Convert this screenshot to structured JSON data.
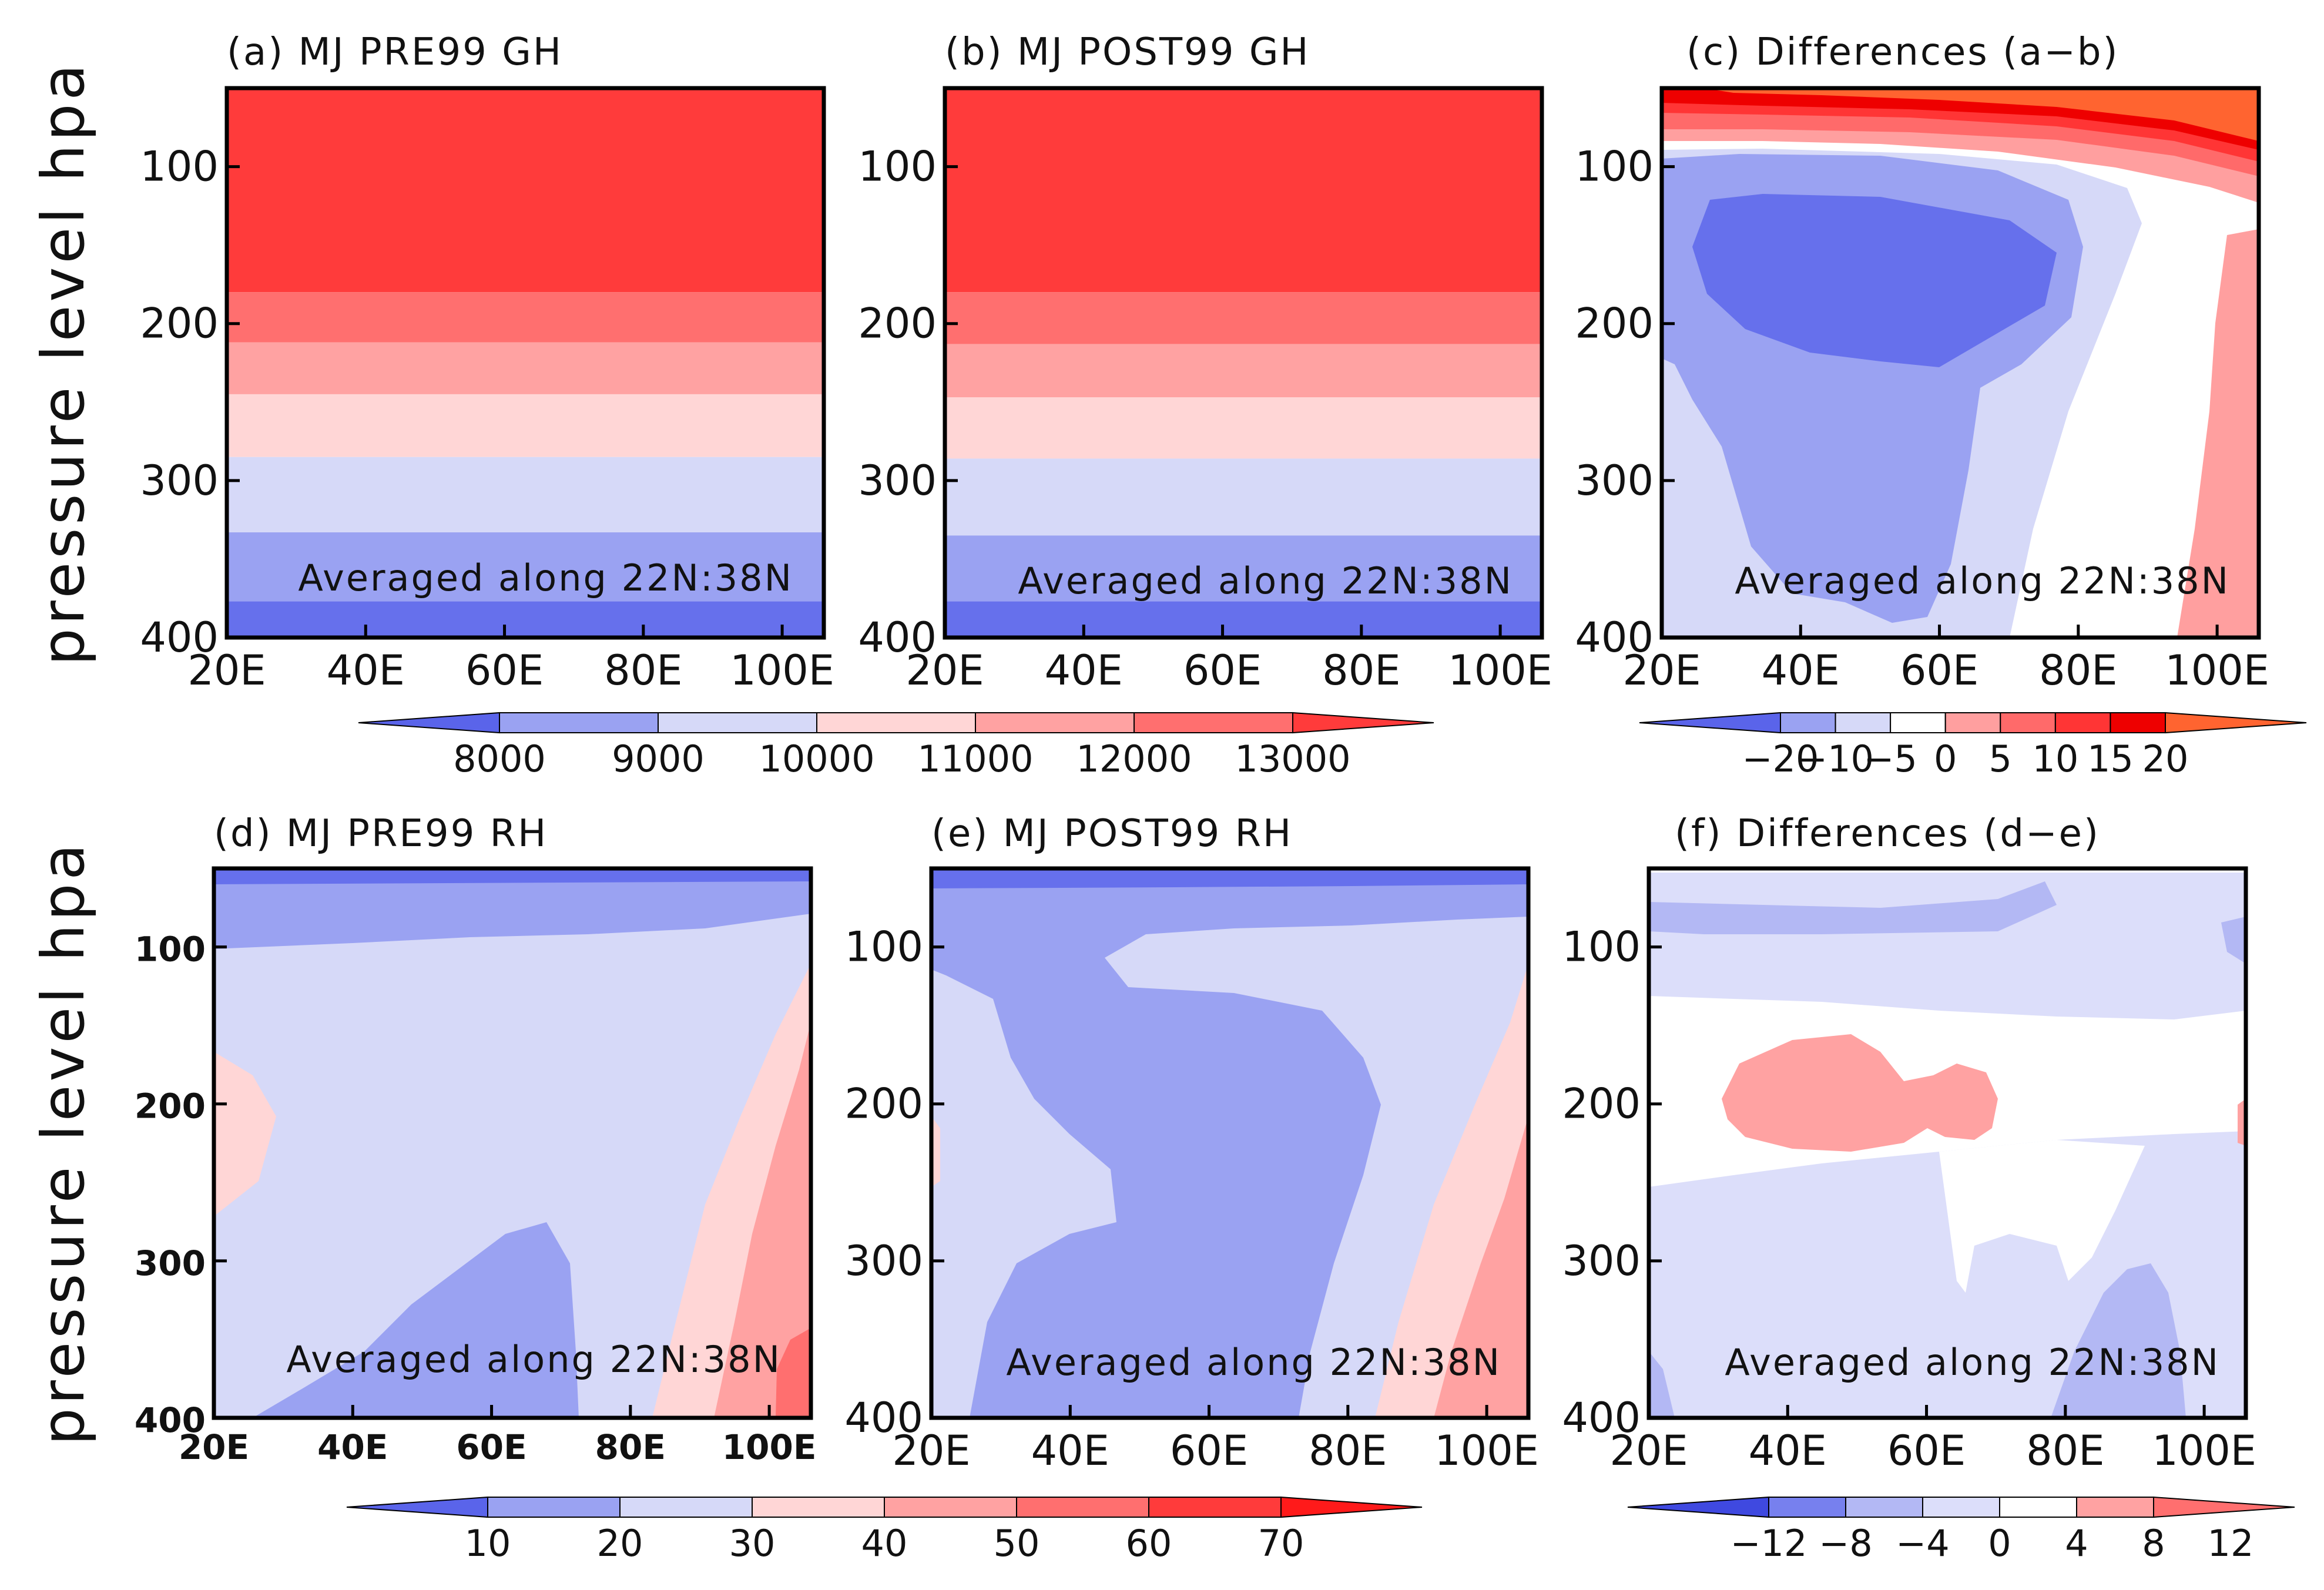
{
  "chart_data": [
    {
      "id": "a",
      "type": "contour",
      "title": "(a) MJ PRE99 GH",
      "ylabel": "pressure level hpa",
      "xticks": [
        "20E",
        "40E",
        "60E",
        "80E",
        "100E"
      ],
      "yticks": [
        "100",
        "200",
        "300",
        "400"
      ],
      "xlim": [
        20,
        106
      ],
      "ylim": [
        50,
        400
      ],
      "annotation": "Averaged along 22N:38N",
      "bands": [
        {
          "range": [
            50,
            180
          ],
          "color": "#ff3b3b"
        },
        {
          "range": [
            180,
            212
          ],
          "color": "#ff6f6f"
        },
        {
          "range": [
            212,
            245
          ],
          "color": "#ffa2a2"
        },
        {
          "range": [
            245,
            285
          ],
          "color": "#ffd6d6"
        },
        {
          "range": [
            285,
            333
          ],
          "color": "#d6d9f8"
        },
        {
          "range": [
            333,
            377
          ],
          "color": "#9aa2f2"
        },
        {
          "range": [
            377,
            400
          ],
          "color": "#6670ec"
        }
      ]
    },
    {
      "id": "b",
      "type": "contour",
      "title": "(b) MJ POST99 GH",
      "xticks": [
        "20E",
        "40E",
        "60E",
        "80E",
        "100E"
      ],
      "yticks": [
        "100",
        "200",
        "300",
        "400"
      ],
      "xlim": [
        20,
        106
      ],
      "ylim": [
        50,
        400
      ],
      "annotation": "Averaged along 22N:38N",
      "bands": [
        {
          "range": [
            50,
            180
          ],
          "color": "#ff3b3b"
        },
        {
          "range": [
            180,
            213
          ],
          "color": "#ff6f6f"
        },
        {
          "range": [
            213,
            247
          ],
          "color": "#ffa2a2"
        },
        {
          "range": [
            247,
            286
          ],
          "color": "#ffd6d6"
        },
        {
          "range": [
            286,
            335
          ],
          "color": "#d6d9f8"
        },
        {
          "range": [
            335,
            377
          ],
          "color": "#9aa2f2"
        },
        {
          "range": [
            377,
            400
          ],
          "color": "#6670ec"
        }
      ]
    },
    {
      "id": "c",
      "type": "contour",
      "title": "(c) Differences (a−b)",
      "xticks": [
        "20E",
        "40E",
        "60E",
        "80E",
        "100E"
      ],
      "yticks": [
        "100",
        "200",
        "300",
        "400"
      ],
      "xlim": [
        20,
        106
      ],
      "ylim": [
        50,
        400
      ],
      "annotation": "Averaged along 22N:38N"
    },
    {
      "id": "d",
      "type": "contour",
      "title": "(d) MJ PRE99 RH",
      "ylabel": "pressure level hpa",
      "xticks": [
        "20E",
        "40E",
        "60E",
        "80E",
        "100E"
      ],
      "yticks": [
        "100",
        "200",
        "300",
        "400"
      ],
      "xlim": [
        20,
        106
      ],
      "ylim": [
        50,
        400
      ],
      "annotation": "Averaged along 22N:38N"
    },
    {
      "id": "e",
      "type": "contour",
      "title": "(e) MJ POST99 RH",
      "xticks": [
        "20E",
        "40E",
        "60E",
        "80E",
        "100E"
      ],
      "yticks": [
        "100",
        "200",
        "300",
        "400"
      ],
      "xlim": [
        20,
        106
      ],
      "ylim": [
        50,
        400
      ],
      "annotation": "Averaged along 22N:38N"
    },
    {
      "id": "f",
      "type": "contour",
      "title": "(f) Differences (d−e)",
      "xticks": [
        "20E",
        "40E",
        "60E",
        "80E",
        "100E"
      ],
      "yticks": [
        "100",
        "200",
        "300",
        "400"
      ],
      "xlim": [
        20,
        106
      ],
      "ylim": [
        50,
        400
      ],
      "annotation": "Averaged along 22N:38N"
    }
  ],
  "colorbars": [
    {
      "id": "gh",
      "labels": [
        "8000",
        "9000",
        "10000",
        "11000",
        "12000",
        "13000"
      ],
      "colors": [
        "#5a64ea",
        "#9aa2f2",
        "#d6d9f8",
        "#ffd6d6",
        "#ffa2a2",
        "#ff6f6f",
        "#ff3b3b"
      ]
    },
    {
      "id": "ghdiff",
      "labels": [
        "−20",
        "−10",
        "−5",
        "0",
        "5",
        "10",
        "15",
        "20"
      ],
      "colors": [
        "#5a64ea",
        "#9aa2f2",
        "#d6d9f8",
        "#ffffff",
        "#ff9f9f",
        "#ff6a6a",
        "#ff3535",
        "#ee0000",
        "#ff6430"
      ]
    },
    {
      "id": "rh",
      "labels": [
        "10",
        "20",
        "30",
        "40",
        "50",
        "60",
        "70"
      ],
      "colors": [
        "#5a64ea",
        "#9aa2f2",
        "#d6d9f8",
        "#ffd6d6",
        "#ffa2a2",
        "#ff6f6f",
        "#ff3b3b",
        "#ff1a1a"
      ]
    },
    {
      "id": "rhdiff",
      "labels": [
        "−12",
        "−8",
        "−4",
        "0",
        "4",
        "8",
        "12"
      ],
      "colors": [
        "#3f49e0",
        "#7780ee",
        "#b3b8f4",
        "#dcdefa",
        "#ffffff",
        "#ffa2a2",
        "#ff6f6f"
      ]
    }
  ]
}
